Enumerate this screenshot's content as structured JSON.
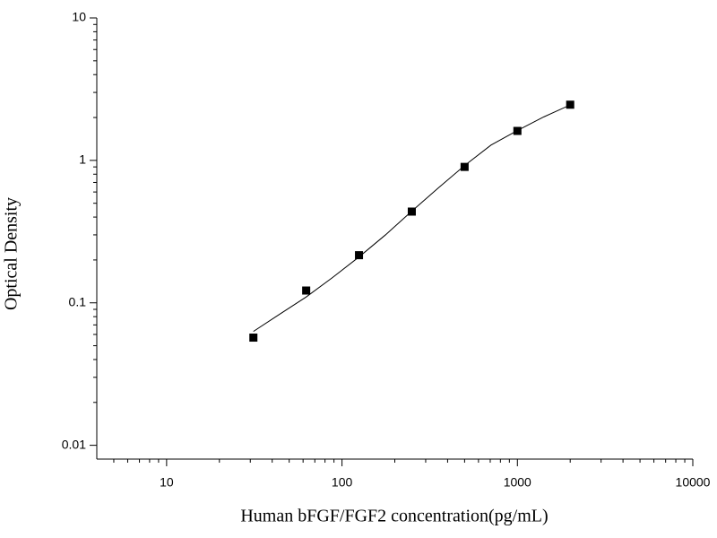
{
  "chart_data": {
    "type": "scatter",
    "log_x": true,
    "log_y": true,
    "x_label": "Human bFGF/FGF2 concentration(pg/mL)",
    "y_label": "Optical Density",
    "xlim": [
      4,
      10000
    ],
    "ylim": [
      0.008,
      10
    ],
    "xticks": [
      10,
      100,
      1000,
      10000
    ],
    "yticks": [
      0.01,
      0.1,
      1,
      10
    ],
    "xminorticks": [
      5,
      6,
      7,
      8,
      9,
      20,
      30,
      40,
      50,
      60,
      70,
      80,
      90,
      200,
      300,
      400,
      500,
      600,
      700,
      800,
      900,
      2000,
      3000,
      4000,
      5000,
      6000,
      7000,
      8000,
      9000
    ],
    "yminorticks": [
      0.02,
      0.03,
      0.04,
      0.05,
      0.06,
      0.07,
      0.08,
      0.09,
      0.2,
      0.3,
      0.4,
      0.5,
      0.6,
      0.7,
      0.8,
      0.9,
      2,
      3,
      4,
      5,
      6,
      7,
      8,
      9
    ],
    "series": [
      {
        "kind": "points",
        "color": "#000000",
        "x": [
          31.25,
          62.5,
          125,
          250,
          500,
          1000,
          2000
        ],
        "values": [
          0.057,
          0.122,
          0.216,
          0.437,
          0.9,
          1.61,
          2.46
        ]
      },
      {
        "kind": "curve",
        "color": "#000000",
        "x": [
          31.25,
          44,
          62.5,
          88,
          125,
          177,
          250,
          354,
          500,
          707,
          1000,
          1414,
          2000
        ],
        "values": [
          0.063,
          0.083,
          0.11,
          0.15,
          0.21,
          0.3,
          0.44,
          0.64,
          0.92,
          1.28,
          1.62,
          2.02,
          2.45
        ]
      }
    ]
  }
}
